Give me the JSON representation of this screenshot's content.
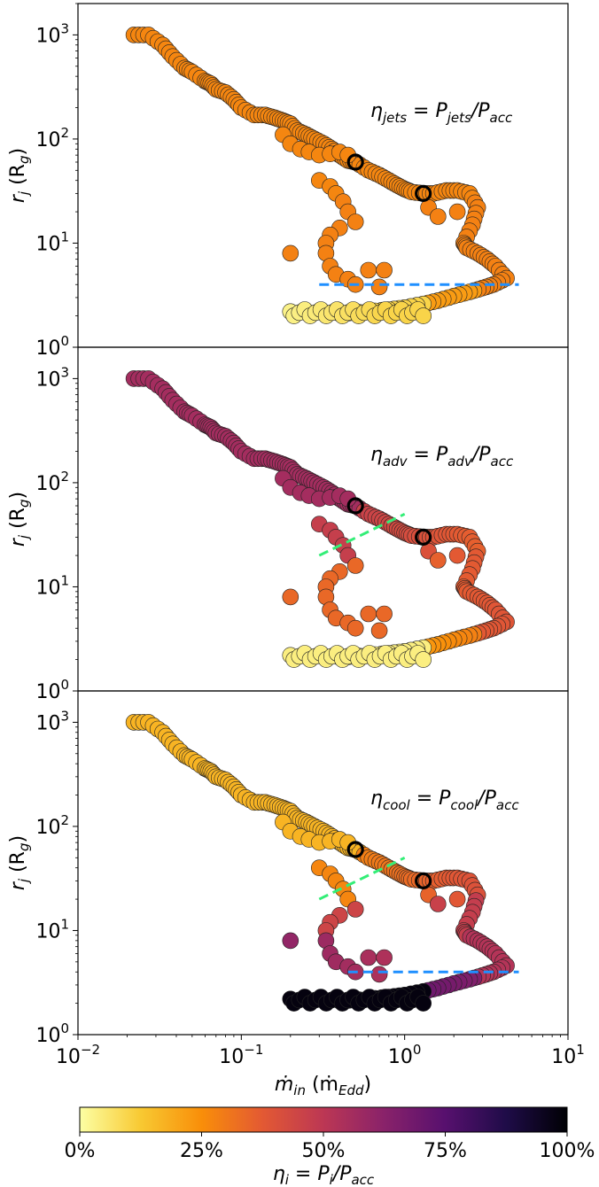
{
  "chart_data": {
    "type": "scatter",
    "x_scale": "log",
    "y_scale": "log",
    "xlim": [
      0.01,
      10
    ],
    "ylim": [
      1,
      2000
    ],
    "x_ticks": [
      {
        "v": 0.01,
        "base": "10",
        "exp": "−2"
      },
      {
        "v": 0.1,
        "base": "10",
        "exp": "−1"
      },
      {
        "v": 1,
        "base": "10",
        "exp": "0"
      },
      {
        "v": 10,
        "base": "10",
        "exp": "1"
      }
    ],
    "y_ticks": [
      {
        "v": 1,
        "base": "10",
        "exp": "0"
      },
      {
        "v": 10,
        "base": "10",
        "exp": "1"
      },
      {
        "v": 100,
        "base": "10",
        "exp": "2"
      },
      {
        "v": 1000,
        "base": "10",
        "exp": "3"
      }
    ],
    "xlabel": {
      "main": "ṁ",
      "sub": "in",
      "unit_open": " (ṁ",
      "unit_sub": "Edd",
      "unit_close": ")"
    },
    "ylabel": {
      "main": "r",
      "sub": "j",
      "unit_open": " (R",
      "unit_sub": "g",
      "unit_close": ")"
    },
    "grid": false,
    "highlight_points": [
      {
        "x": 0.5,
        "y": 60
      },
      {
        "x": 1.3,
        "y": 30
      }
    ],
    "track": [
      [
        0.022,
        1000
      ],
      [
        0.027,
        1000
      ],
      [
        0.033,
        800
      ],
      [
        0.038,
        620
      ],
      [
        0.045,
        480
      ],
      [
        0.05,
        440
      ],
      [
        0.06,
        360
      ],
      [
        0.065,
        340
      ],
      [
        0.07,
        300
      ],
      [
        0.08,
        280
      ],
      [
        0.09,
        240
      ],
      [
        0.1,
        200
      ],
      [
        0.12,
        170
      ],
      [
        0.14,
        170
      ],
      [
        0.16,
        160
      ],
      [
        0.18,
        150
      ],
      [
        0.2,
        140
      ],
      [
        0.22,
        120
      ],
      [
        0.25,
        110
      ],
      [
        0.28,
        100
      ],
      [
        0.32,
        90
      ],
      [
        0.36,
        80
      ],
      [
        0.4,
        70
      ],
      [
        0.45,
        62
      ],
      [
        0.5,
        60
      ],
      [
        0.6,
        50
      ],
      [
        0.7,
        45
      ],
      [
        0.8,
        40
      ],
      [
        0.9,
        36
      ],
      [
        1.0,
        33
      ],
      [
        1.1,
        31
      ],
      [
        1.3,
        30
      ],
      [
        1.5,
        30
      ],
      [
        1.8,
        32
      ],
      [
        2.1,
        32
      ],
      [
        2.5,
        30
      ],
      [
        2.8,
        22
      ],
      [
        2.6,
        15
      ],
      [
        2.3,
        10
      ],
      [
        2.4,
        9
      ],
      [
        2.8,
        8
      ],
      [
        3.2,
        7
      ],
      [
        3.6,
        6
      ],
      [
        4.2,
        4.6
      ],
      [
        3.5,
        4.0
      ],
      [
        3.0,
        3.7
      ],
      [
        2.5,
        3.4
      ],
      [
        2.0,
        3.1
      ],
      [
        1.6,
        2.8
      ],
      [
        1.3,
        2.6
      ],
      [
        1.0,
        2.4
      ],
      [
        0.8,
        2.3
      ],
      [
        0.6,
        2.2
      ],
      [
        0.4,
        2.1
      ],
      [
        0.2,
        2.2
      ],
      [
        0.18,
        110
      ],
      [
        0.2,
        90
      ],
      [
        0.23,
        80
      ],
      [
        0.26,
        75
      ],
      [
        0.3,
        70
      ],
      [
        0.35,
        72
      ],
      [
        0.4,
        75
      ],
      [
        0.45,
        70
      ],
      [
        0.3,
        40
      ],
      [
        0.35,
        35
      ],
      [
        0.38,
        30
      ],
      [
        0.42,
        25
      ],
      [
        0.45,
        20
      ],
      [
        0.5,
        16
      ],
      [
        0.4,
        14
      ],
      [
        0.35,
        12
      ],
      [
        0.33,
        10
      ],
      [
        0.33,
        8
      ],
      [
        0.35,
        6
      ],
      [
        0.38,
        5
      ],
      [
        0.45,
        4.5
      ],
      [
        0.5,
        4
      ],
      [
        0.7,
        3.8
      ],
      [
        0.2,
        8
      ],
      [
        0.6,
        5.5
      ],
      [
        0.75,
        5.5
      ],
      [
        1.4,
        22
      ],
      [
        1.6,
        18
      ],
      [
        2.1,
        20
      ]
    ],
    "panels": [
      {
        "label": {
          "lhs": "η",
          "lhs_sub": "jets",
          "eq": " = P",
          "n_sub": "jets",
          "slash": "/P",
          "d_sub": "acc"
        },
        "lines": [
          {
            "type": "blue-dashed",
            "x": [
              0.3,
              5
            ],
            "y": [
              4,
              4
            ]
          }
        ]
      },
      {
        "label": {
          "lhs": "η",
          "lhs_sub": "adv",
          "eq": " = P",
          "n_sub": "adv",
          "slash": "/P",
          "d_sub": "acc"
        },
        "lines": [
          {
            "type": "green-dashed",
            "x": [
              0.3,
              1.0
            ],
            "y": [
              20,
              50
            ]
          }
        ]
      },
      {
        "label": {
          "lhs": "η",
          "lhs_sub": "cool",
          "eq": " = P",
          "n_sub": "cool",
          "slash": "/P",
          "d_sub": "acc"
        },
        "lines": [
          {
            "type": "blue-dashed",
            "x": [
              0.45,
              5
            ],
            "y": [
              4,
              4
            ]
          },
          {
            "type": "green-dashed",
            "x": [
              0.3,
              1.0
            ],
            "y": [
              20,
              50
            ]
          }
        ]
      }
    ],
    "colorbar": {
      "ticks": [
        {
          "v": 0,
          "label": "0%"
        },
        {
          "v": 0.25,
          "label": "25%"
        },
        {
          "v": 0.5,
          "label": "50%"
        },
        {
          "v": 0.75,
          "label": "75%"
        },
        {
          "v": 1,
          "label": "100%"
        }
      ],
      "label": {
        "lhs": "η",
        "lhs_sub": "i",
        "eq": " = P",
        "n_sub": "i",
        "slash": "/P",
        "d_sub": "acc"
      },
      "colormap": "inferno-reversed",
      "stops": [
        "#fcffa4",
        "#f8c932",
        "#f98e09",
        "#e35933",
        "#bc3754",
        "#89226a",
        "#57106e",
        "#1f0c48",
        "#000004"
      ]
    },
    "colors": {
      "blue_dashed": "#1f8fff",
      "green_dashed": "#33ee77",
      "marker_edge": "#222222",
      "highlight_edge": "#000000"
    }
  }
}
